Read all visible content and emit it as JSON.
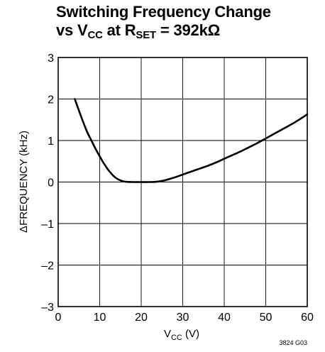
{
  "chart_data": {
    "type": "line",
    "title_line1": "Switching Frequency Change",
    "title_line2": {
      "a": "vs V",
      "a_sub": "CC",
      "b": " at R",
      "b_sub": "SET",
      "c": " = 392kΩ"
    },
    "xlabel": {
      "main": "V",
      "sub": "CC",
      "tail": " (V)"
    },
    "ylabel": "ΔFREQUENCY (kHz)",
    "figure_code": "3824 G03",
    "xlim": [
      0,
      60
    ],
    "ylim": [
      -3,
      3
    ],
    "xticks": [
      0,
      10,
      20,
      30,
      40,
      50,
      60
    ],
    "xtick_labels": [
      "0",
      "10",
      "20",
      "30",
      "40",
      "50",
      "60"
    ],
    "yticks": [
      3,
      2,
      1,
      0,
      -1,
      -2,
      -3
    ],
    "ytick_labels": [
      "3",
      "2",
      "1",
      "0",
      "–1",
      "–2",
      "–3"
    ],
    "grid": true,
    "series": [
      {
        "x": [
          4,
          5,
          6,
          7,
          8,
          9,
          10,
          11,
          12,
          13,
          14,
          15,
          16,
          18,
          20,
          22,
          24,
          26,
          28,
          30,
          32,
          34,
          36,
          38,
          40,
          42,
          44,
          46,
          48,
          50,
          52,
          54,
          56,
          58,
          60
        ],
        "y": [
          2.0,
          1.72,
          1.45,
          1.2,
          1.0,
          0.8,
          0.62,
          0.45,
          0.3,
          0.18,
          0.09,
          0.04,
          0.01,
          0.0,
          0.0,
          0.0,
          0.01,
          0.05,
          0.11,
          0.18,
          0.25,
          0.32,
          0.39,
          0.47,
          0.56,
          0.65,
          0.74,
          0.84,
          0.94,
          1.05,
          1.16,
          1.27,
          1.38,
          1.5,
          1.63
        ]
      }
    ]
  }
}
